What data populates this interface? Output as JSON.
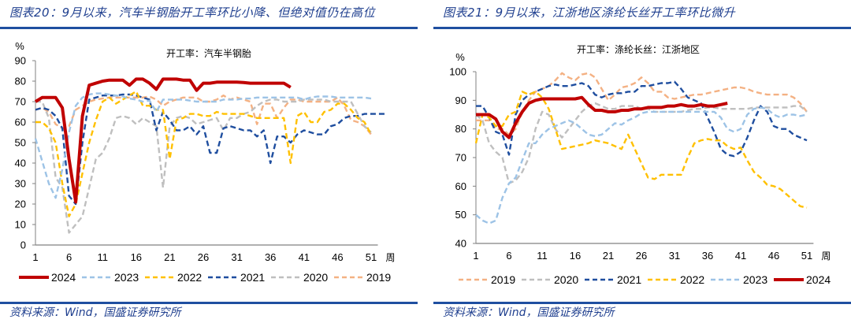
{
  "left": {
    "title": "图表20：9月以来，汽车半钢胎开工率环比小降、但绝对值仍在高位",
    "source": "资料来源：Wind，国盛证券研究所"
  },
  "right": {
    "title": "图表21：9月以来，江浙地区涤纶长丝开工率环比微升",
    "source": "资料来源：Wind，国盛证券研究所"
  },
  "chart_data": [
    {
      "type": "line",
      "title": "开工率：汽车半钢胎",
      "ylabel": "%",
      "xlabel": "周",
      "ylim": [
        0,
        90
      ],
      "yticks": [
        0,
        10,
        20,
        30,
        40,
        50,
        60,
        70,
        80,
        90
      ],
      "xlim": [
        1,
        52
      ],
      "xticks": [
        1,
        6,
        11,
        16,
        21,
        26,
        31,
        36,
        41,
        46,
        51
      ],
      "legend_position": "bottom",
      "legend_order": [
        "2024",
        "2023",
        "2022",
        "2021",
        "2020",
        "2019"
      ],
      "series": [
        {
          "name": "2024",
          "color": "#c00000",
          "style": "solid",
          "values": [
            70,
            72,
            72,
            72,
            67,
            42,
            21,
            63,
            78,
            79,
            80,
            80.5,
            80.5,
            80.5,
            78,
            81,
            81,
            79,
            76,
            81,
            81,
            81,
            80.5,
            80.5,
            75.5,
            79,
            79,
            79.5,
            79.5,
            79.5,
            79.5,
            79.3,
            79,
            79,
            79,
            79,
            79,
            79,
            77
          ]
        },
        {
          "name": "2023",
          "color": "#9dc3e6",
          "style": "dash",
          "values": [
            52,
            41,
            30,
            23,
            37,
            55,
            68,
            72,
            73.5,
            74,
            74,
            73.5,
            73,
            72.5,
            71.5,
            71,
            70,
            70.5,
            65,
            71,
            71,
            71,
            71,
            70.5,
            70,
            70,
            70,
            70,
            71,
            71,
            71,
            71.5,
            71.5,
            72,
            72,
            72,
            72,
            72,
            72,
            72,
            71,
            72,
            72.5,
            72.5,
            72.5,
            72,
            72,
            72,
            72,
            72,
            71.5
          ]
        },
        {
          "name": "2022",
          "color": "#ffc000",
          "style": "dash",
          "values": [
            60,
            60,
            57,
            50,
            30,
            14,
            20,
            35,
            50,
            61,
            70,
            72,
            69,
            71,
            73,
            75,
            68,
            68,
            66,
            66,
            42,
            61,
            62,
            64,
            64,
            63,
            63,
            65,
            64,
            64,
            64,
            64,
            63,
            62,
            62,
            62,
            62,
            62,
            40,
            63,
            65,
            60,
            60,
            65,
            66,
            69,
            69,
            66,
            62,
            60,
            54
          ]
        },
        {
          "name": "2021",
          "color": "#1f4e9f",
          "style": "dash",
          "values": [
            66,
            67,
            66,
            63,
            57,
            24,
            20,
            50,
            71,
            72,
            73,
            73,
            73,
            73.5,
            73.5,
            73,
            72,
            71,
            56,
            65,
            61,
            56,
            56,
            58,
            54,
            58,
            45,
            45,
            57,
            58,
            57,
            56,
            56,
            53,
            56,
            40,
            53,
            53,
            50,
            54,
            56,
            55,
            54,
            54,
            58,
            59,
            62,
            63,
            63,
            64,
            64,
            64,
            64
          ]
        },
        {
          "name": "2020",
          "color": "#bfbfbf",
          "style": "dash",
          "values": [
            70,
            70,
            62,
            33,
            28,
            6,
            10,
            14,
            28,
            42,
            45,
            52,
            62,
            63,
            62,
            59,
            62,
            60,
            58,
            28,
            58,
            62,
            63,
            62,
            59,
            60,
            61,
            62,
            56,
            62,
            62,
            64,
            65,
            68,
            70,
            71,
            71,
            70,
            70,
            70,
            71,
            71,
            71,
            71,
            70,
            70,
            70,
            70,
            64,
            58,
            55
          ]
        },
        {
          "name": "2019",
          "color": "#f4b183",
          "style": "dash",
          "values": [
            66,
            67,
            65,
            59,
            57,
            58,
            66,
            68,
            70,
            71,
            71.5,
            72,
            72,
            72,
            72,
            72,
            72,
            72.5,
            71,
            68,
            70,
            71,
            72,
            72,
            72,
            70,
            70,
            71,
            73,
            71,
            72,
            71,
            70,
            59,
            69,
            69,
            62,
            67,
            71,
            71,
            70,
            70,
            70,
            70,
            70,
            72,
            68,
            61,
            60,
            58,
            54
          ]
        }
      ]
    },
    {
      "type": "line",
      "title": "开工率：涤纶长丝：江浙地区",
      "ylabel": "%",
      "xlabel": "周",
      "ylim": [
        40,
        100
      ],
      "yticks": [
        40,
        50,
        60,
        70,
        80,
        90,
        100
      ],
      "xlim": [
        1,
        52
      ],
      "xticks": [
        1,
        6,
        11,
        16,
        21,
        26,
        31,
        36,
        41,
        46,
        51
      ],
      "legend_position": "bottom",
      "legend_order": [
        "2019",
        "2020",
        "2021",
        "2022",
        "2023",
        "2024"
      ],
      "series": [
        {
          "name": "2019",
          "color": "#f4b183",
          "style": "dash",
          "values": [
            83,
            83,
            83,
            80,
            80,
            78,
            80,
            86,
            90,
            93,
            94,
            95,
            97,
            99.5,
            98,
            97,
            99,
            99.5,
            98,
            94,
            90,
            92,
            94.5,
            95,
            96,
            98,
            96,
            93,
            93,
            91,
            90.5,
            91,
            91.5,
            92,
            92,
            92.5,
            93,
            93.5,
            94,
            94.5,
            94.5,
            94,
            93,
            92.5,
            92,
            92,
            92,
            92,
            91,
            89,
            86
          ]
        },
        {
          "name": "2020",
          "color": "#bfbfbf",
          "style": "dash",
          "values": [
            85,
            83,
            75,
            72,
            70,
            61,
            62,
            65,
            70,
            80,
            86,
            85,
            80,
            77,
            80,
            83,
            86,
            88,
            89,
            88,
            87,
            87,
            88,
            88,
            88,
            87,
            87,
            86,
            86,
            86,
            86,
            86,
            86.5,
            87,
            87,
            87.5,
            87.5,
            87,
            87,
            87,
            87,
            87,
            87.5,
            87.5,
            87.5,
            87.5,
            87.5,
            87.5,
            88,
            88,
            86
          ]
        },
        {
          "name": "2021",
          "color": "#1f4e9f",
          "style": "dash",
          "values": [
            88,
            88,
            84,
            79,
            78,
            71,
            85,
            90,
            92,
            93,
            94,
            95,
            95.5,
            95,
            95,
            95.5,
            96,
            95,
            92,
            91,
            92,
            92.5,
            92.5,
            93,
            93,
            95,
            95,
            95.5,
            96,
            96,
            96.5,
            94,
            91,
            90,
            89,
            84,
            79,
            73,
            71,
            70.5,
            72,
            77,
            83,
            88,
            86,
            81,
            80,
            80,
            78,
            77,
            76
          ]
        },
        {
          "name": "2022",
          "color": "#ffc000",
          "style": "dash",
          "values": [
            75,
            85,
            84,
            81,
            81,
            85,
            86,
            93,
            92,
            93,
            91,
            87,
            80,
            73,
            73.5,
            74,
            74.5,
            75,
            76,
            75.5,
            75,
            74,
            73,
            78,
            73,
            68,
            63,
            62.5,
            64,
            64,
            64,
            64,
            70,
            75,
            76,
            76.5,
            76,
            76,
            74,
            73,
            73.5,
            69,
            65,
            63,
            60.5,
            60,
            59,
            57,
            55,
            53,
            52.5
          ]
        },
        {
          "name": "2023",
          "color": "#9dc3e6",
          "style": "dash",
          "values": [
            50,
            48,
            47,
            48,
            56,
            61,
            63,
            69,
            75,
            75,
            78,
            80,
            81,
            82,
            83,
            82,
            80,
            78,
            77.5,
            78,
            80,
            82,
            81.5,
            83,
            84,
            85.5,
            86,
            86,
            86,
            86,
            86,
            86,
            86,
            86,
            86,
            86,
            86,
            84,
            80,
            79,
            80,
            85,
            87,
            87.5,
            87,
            85,
            84,
            85,
            85,
            84.5,
            85
          ]
        },
        {
          "name": "2024",
          "color": "#c00000",
          "style": "solid",
          "values": [
            85,
            85,
            85,
            83.5,
            79,
            77,
            82,
            86,
            89,
            90,
            90.5,
            90.5,
            90.5,
            90.5,
            90.5,
            90.5,
            91,
            88.5,
            86.5,
            86.5,
            86,
            86,
            86.5,
            86.5,
            87,
            87,
            87.5,
            87.5,
            87.5,
            88,
            88,
            88.5,
            88,
            88,
            88.5,
            88,
            88,
            88.5,
            89
          ]
        }
      ]
    }
  ]
}
